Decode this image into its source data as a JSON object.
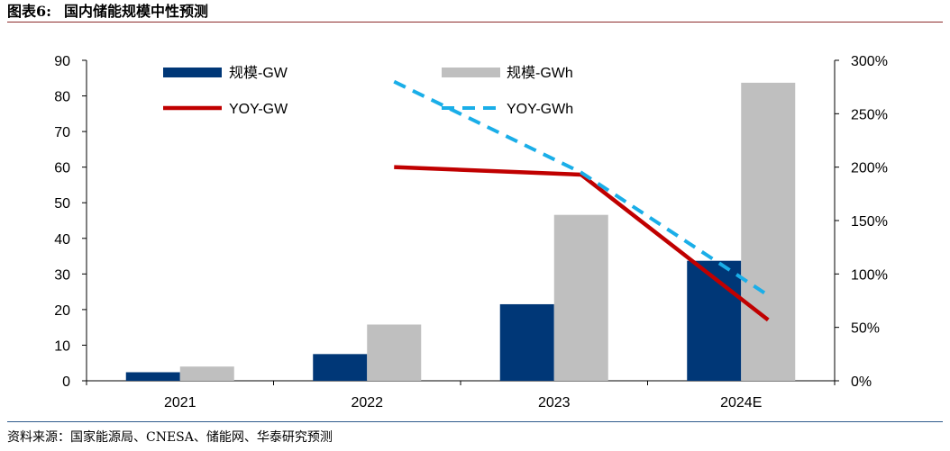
{
  "figure": {
    "title_label": "图表6:",
    "title_text": "国内储能规模中性预测",
    "source": "资料来源：国家能源局、CNESA、储能网、华泰研究预测"
  },
  "chart_data": {
    "type": "bar",
    "title": "国内储能规模中性预测",
    "categories": [
      "2021",
      "2022",
      "2023",
      "2024E"
    ],
    "y_left": {
      "min": 0,
      "max": 90,
      "step": 10,
      "ticks": [
        "0",
        "10",
        "20",
        "30",
        "40",
        "50",
        "60",
        "70",
        "80",
        "90"
      ]
    },
    "y_right": {
      "min": 0,
      "max": 300,
      "step": 50,
      "ticks": [
        "0%",
        "50%",
        "100%",
        "150%",
        "200%",
        "250%",
        "300%"
      ]
    },
    "series": [
      {
        "name": "规模-GW",
        "kind": "bar",
        "axis": "left",
        "color": "#003777",
        "values": [
          2.4,
          7.5,
          21.5,
          33.7
        ]
      },
      {
        "name": "规模-GWh",
        "kind": "bar",
        "axis": "left",
        "color": "#bfbfbf",
        "values": [
          4.0,
          15.8,
          46.6,
          83.7
        ]
      },
      {
        "name": "YOY-GW",
        "kind": "line",
        "axis": "right",
        "color": "#c00000",
        "dash": "solid",
        "values": [
          null,
          200,
          193,
          57
        ]
      },
      {
        "name": "YOY-GWh",
        "kind": "line",
        "axis": "right",
        "color": "#1aaee8",
        "dash": "dashed",
        "values": [
          null,
          280,
          195,
          80
        ]
      }
    ],
    "legend_position": "top"
  }
}
